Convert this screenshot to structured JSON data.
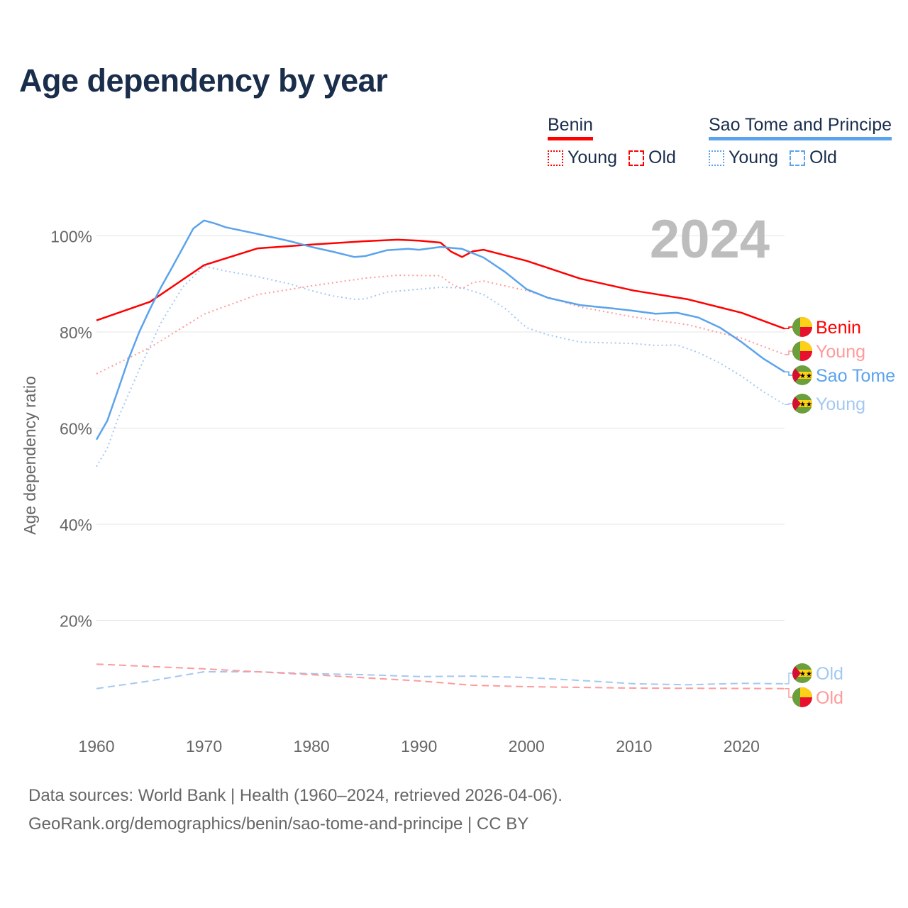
{
  "chart_data": {
    "type": "line",
    "title": "Age dependency by year",
    "xlabel": "",
    "ylabel": "Age dependency ratio",
    "xlim": [
      1960,
      2024
    ],
    "ylim": [
      0,
      110
    ],
    "x_ticks": [
      1960,
      1970,
      1980,
      1990,
      2000,
      2010,
      2020
    ],
    "y_ticks": [
      20,
      40,
      60,
      80,
      100
    ],
    "y_tick_labels": [
      "20%",
      "40%",
      "60%",
      "80%",
      "100%"
    ],
    "grid": true,
    "year_overlay": "2024",
    "legend": {
      "placement": "top-right",
      "groups": [
        {
          "country": "Benin",
          "color": "#ff0000",
          "items": [
            "Young",
            "Old"
          ]
        },
        {
          "country": "Sao Tome and Principe",
          "color": "#5ba3ec",
          "items": [
            "Young",
            "Old"
          ]
        }
      ]
    },
    "series": [
      {
        "name": "Benin",
        "label": "Benin",
        "flag": "benin-flag",
        "style": "solid",
        "color": "#ff0000",
        "x": [
          1960,
          1965,
          1970,
          1975,
          1980,
          1985,
          1988,
          1990,
          1992,
          1993,
          1994,
          1995,
          1996,
          2000,
          2005,
          2010,
          2015,
          2020,
          2024
        ],
        "y": [
          82.4,
          86.3,
          93.9,
          97.4,
          98.2,
          98.9,
          99.2,
          99.0,
          98.6,
          96.7,
          95.6,
          96.8,
          97.1,
          94.8,
          91.1,
          88.6,
          86.8,
          84.0,
          80.7
        ]
      },
      {
        "name": "Benin Young",
        "label": "Young",
        "flag": "benin-flag",
        "style": "dotted",
        "color": "#ff9a9a",
        "x": [
          1960,
          1965,
          1970,
          1975,
          1980,
          1985,
          1988,
          1992,
          1993,
          1994,
          1995,
          1996,
          2000,
          2005,
          2010,
          2015,
          2020,
          2024
        ],
        "y": [
          71.3,
          76.8,
          83.7,
          87.8,
          89.6,
          91.2,
          91.8,
          91.7,
          90.0,
          89.0,
          90.3,
          90.6,
          88.6,
          85.2,
          83.1,
          81.5,
          78.7,
          75.3
        ]
      },
      {
        "name": "Sao Tome and Principe",
        "label": "Sao Tome",
        "flag": "stp-flag",
        "style": "solid",
        "color": "#5ba3ec",
        "x": [
          1960,
          1961,
          1962,
          1963,
          1964,
          1965,
          1966,
          1967,
          1968,
          1969,
          1970,
          1971,
          1972,
          1975,
          1978,
          1980,
          1982,
          1984,
          1985,
          1987,
          1989,
          1990,
          1992,
          1994,
          1996,
          1998,
          2000,
          2002,
          2005,
          2008,
          2010,
          2012,
          2014,
          2016,
          2018,
          2020,
          2022,
          2024
        ],
        "y": [
          57.6,
          61.5,
          67.9,
          74.5,
          80.1,
          84.9,
          89.3,
          93.3,
          97.4,
          101.5,
          103.2,
          102.6,
          101.8,
          100.4,
          98.9,
          97.7,
          96.7,
          95.6,
          95.8,
          97.0,
          97.3,
          97.1,
          97.7,
          97.3,
          95.5,
          92.5,
          88.9,
          87.1,
          85.6,
          84.9,
          84.4,
          83.8,
          84.0,
          83.0,
          80.9,
          77.9,
          74.5,
          71.7
        ]
      },
      {
        "name": "Sao Tome and Principe Young",
        "label": "Young",
        "flag": "stp-flag",
        "style": "dotted",
        "color": "#a3c8f2",
        "x": [
          1960,
          1961,
          1962,
          1964,
          1966,
          1968,
          1970,
          1972,
          1975,
          1978,
          1980,
          1982,
          1984,
          1985,
          1987,
          1990,
          1992,
          1994,
          1996,
          1998,
          2000,
          2002,
          2005,
          2010,
          2012,
          2014,
          2016,
          2018,
          2020,
          2022,
          2024
        ],
        "y": [
          52.0,
          55.8,
          62.0,
          72.3,
          81.9,
          89.3,
          93.7,
          92.7,
          91.5,
          90.0,
          88.6,
          87.5,
          86.8,
          86.9,
          88.3,
          88.9,
          89.3,
          89.2,
          87.8,
          84.9,
          80.9,
          79.4,
          77.9,
          77.6,
          77.2,
          77.3,
          75.7,
          73.5,
          70.8,
          67.6,
          64.9
        ]
      },
      {
        "name": "Sao Tome and Principe Old",
        "label": "Old",
        "flag": "stp-flag",
        "style": "dashed",
        "color": "#a3c8f2",
        "x": [
          1960,
          1965,
          1970,
          1975,
          1980,
          1985,
          1990,
          1995,
          2000,
          2005,
          2010,
          2015,
          2020,
          2024
        ],
        "y": [
          5.8,
          7.4,
          9.3,
          9.3,
          8.9,
          8.7,
          8.3,
          8.4,
          8.1,
          7.5,
          6.8,
          6.6,
          6.9,
          6.8
        ]
      },
      {
        "name": "Benin Old",
        "label": "Old",
        "flag": "benin-flag",
        "style": "dashed",
        "color": "#ff9a9a",
        "x": [
          1960,
          1970,
          1980,
          1990,
          1995,
          2000,
          2010,
          2024
        ],
        "y": [
          10.9,
          9.9,
          8.7,
          7.4,
          6.5,
          6.2,
          5.9,
          5.8
        ]
      }
    ]
  },
  "footer": {
    "line1": "Data sources: World Bank | Health (1960–2024, retrieved 2026-04-06).",
    "line2": "GeoRank.org/demographics/benin/sao-tome-and-principe | CC BY"
  }
}
